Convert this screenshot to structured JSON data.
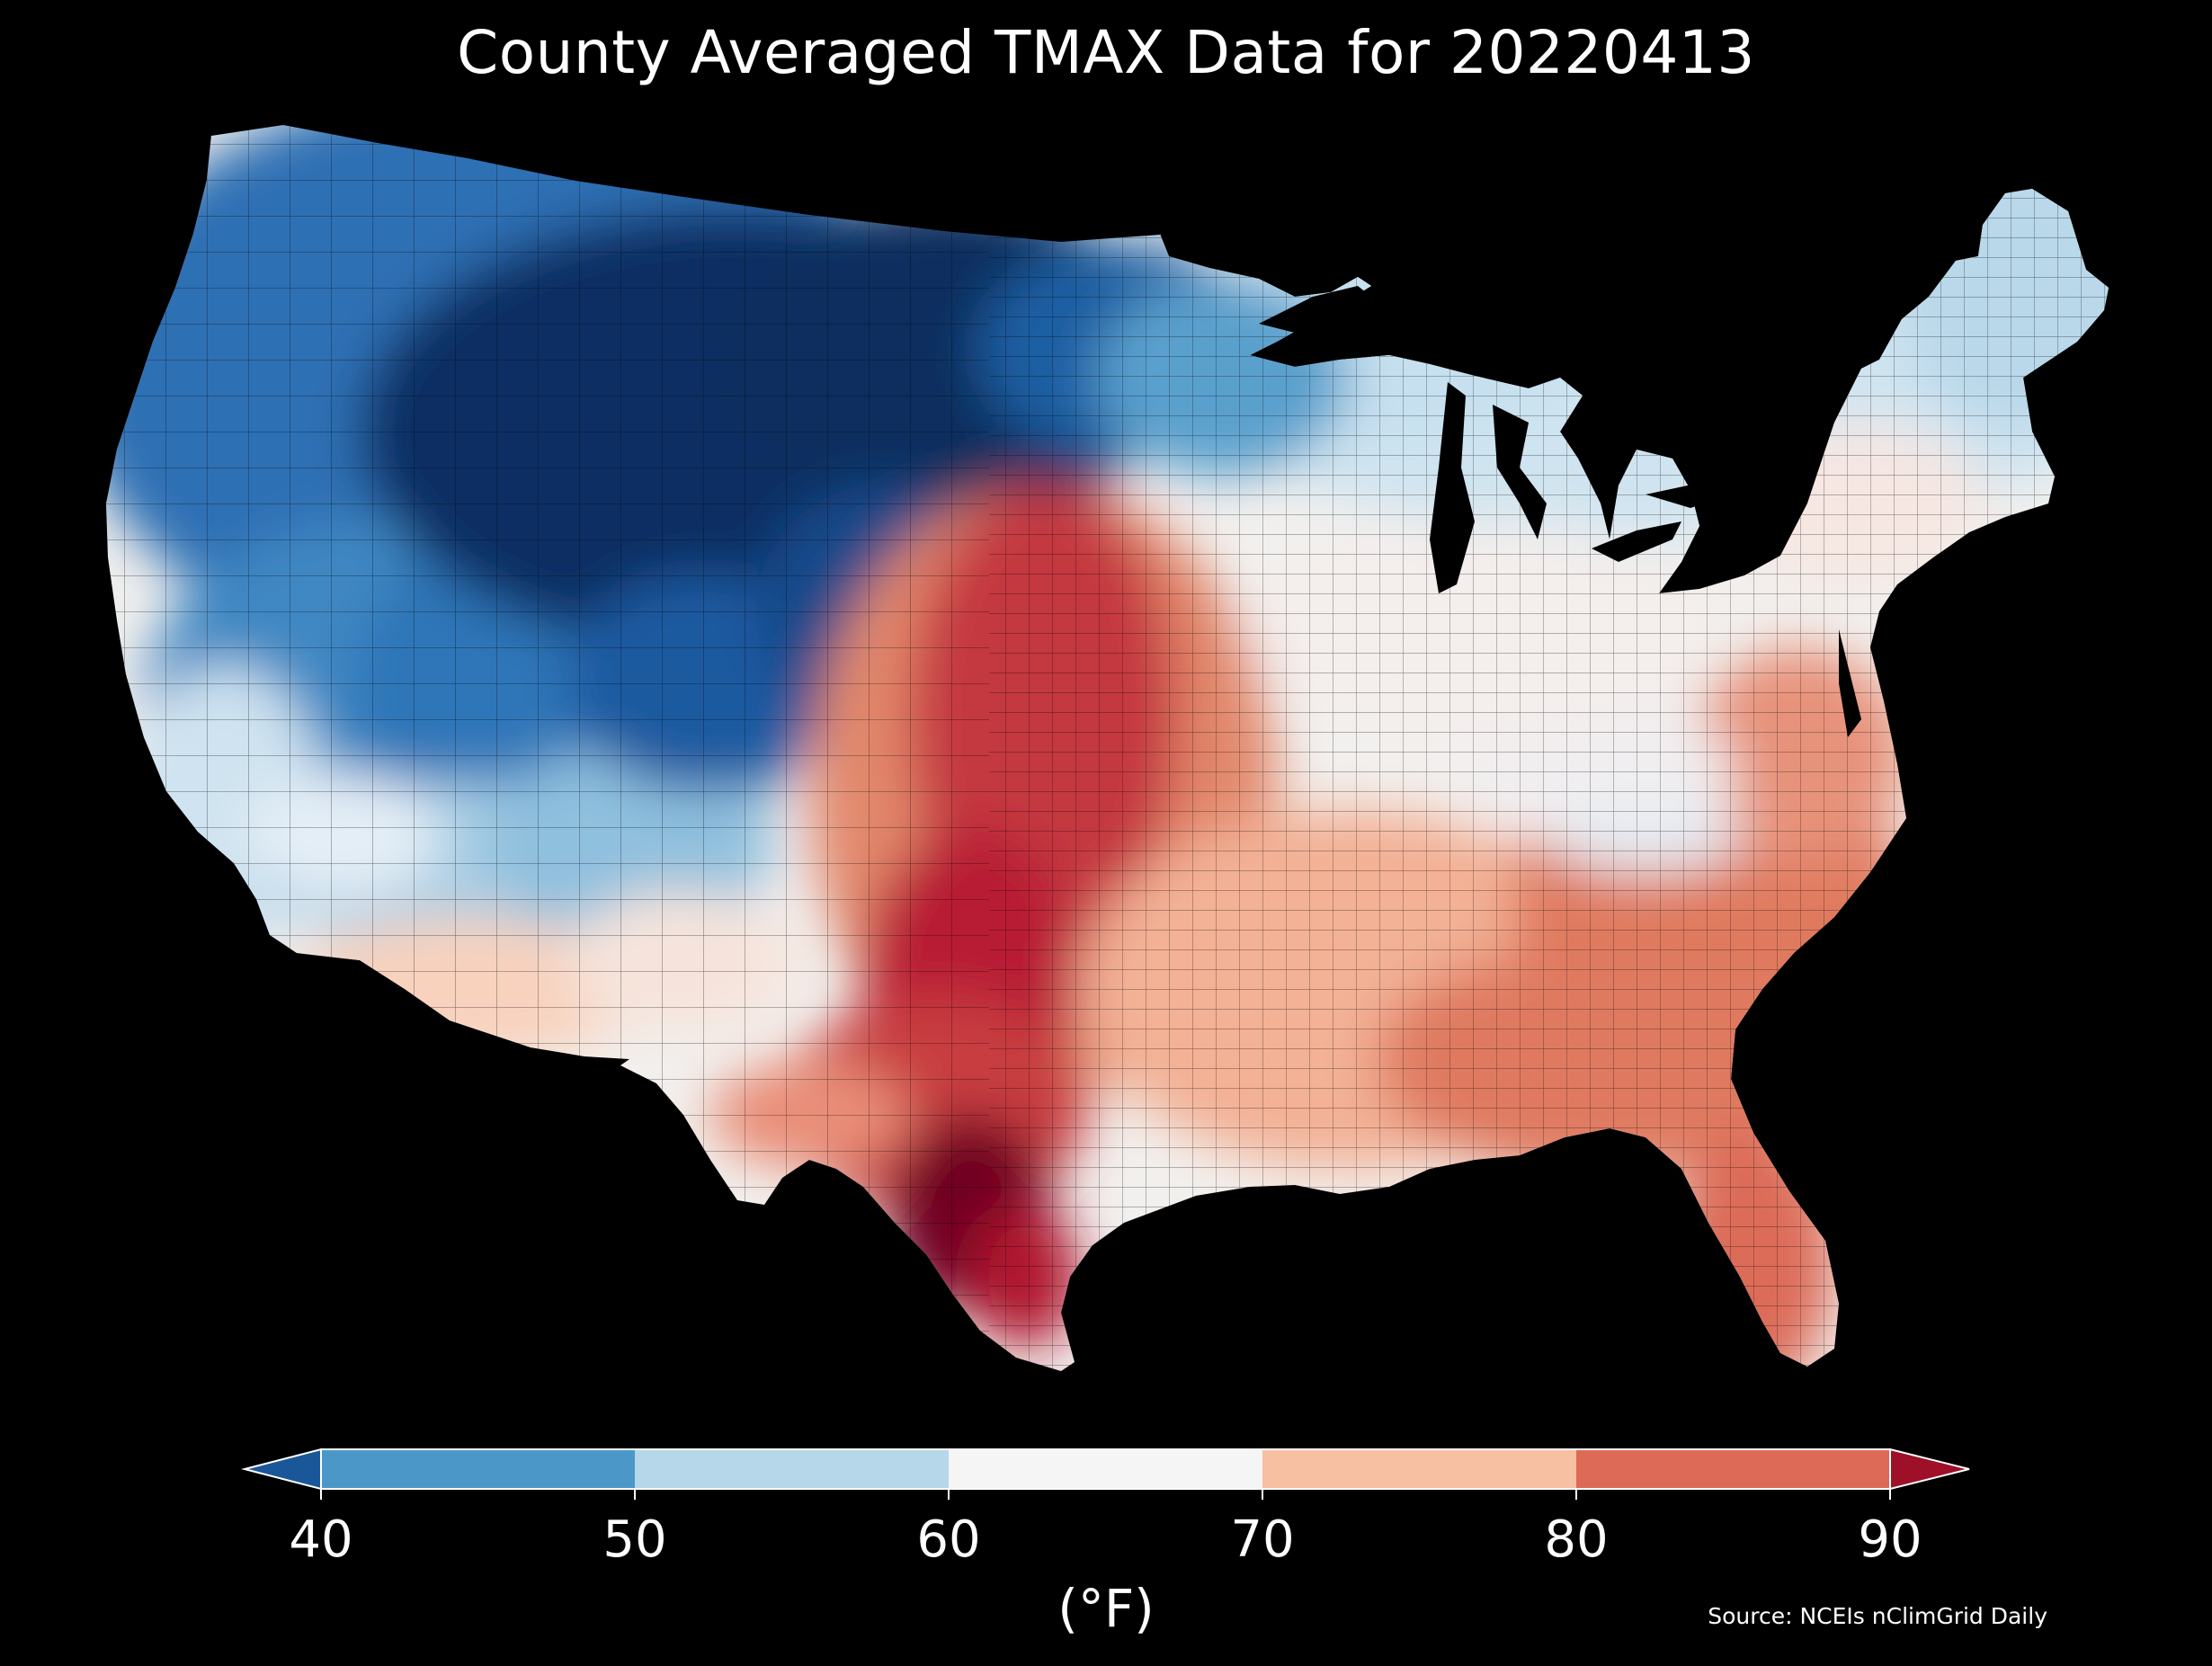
{
  "title": "County Averaged TMAX Data for 20220413",
  "colorbar": {
    "unit_label": "(°F)",
    "ticks": [
      "40",
      "50",
      "60",
      "70",
      "80",
      "90"
    ],
    "bins": [
      {
        "range": "<40",
        "color": "#1a5799"
      },
      {
        "range": "40-50",
        "color": "#4b98c8"
      },
      {
        "range": "50-60",
        "color": "#b6d7e9"
      },
      {
        "range": "60-70",
        "color": "#f5f5f5"
      },
      {
        "range": "70-80",
        "color": "#f8c0a2"
      },
      {
        "range": "80-90",
        "color": "#dc6a56"
      },
      {
        "range": ">90",
        "color": "#9d1028"
      }
    ]
  },
  "source": "Source: NCEIs nClimGrid Daily",
  "map_regions": [
    {
      "region": "Northern Plains / Montana / Dakotas",
      "tmax_band": "<40",
      "color": "#0b2f63"
    },
    {
      "region": "Pacific Northwest / Idaho / Wyoming",
      "tmax_band": "40-50",
      "color": "#2a6ab0"
    },
    {
      "region": "Colorado / Utah highlands",
      "tmax_band": "40-50",
      "color": "#3a82c0"
    },
    {
      "region": "California coast / Nevada / New England / Great Lakes",
      "tmax_band": "50-60",
      "color": "#bcd9ea"
    },
    {
      "region": "Ohio Valley / Mid-Atlantic",
      "tmax_band": "60-70",
      "color": "#f4f0ef"
    },
    {
      "region": "Southeast / Arizona / Gulf Coast",
      "tmax_band": "70-80",
      "color": "#f2a887"
    },
    {
      "region": "Carolinas / Georgia / Florida",
      "tmax_band": "80-90",
      "color": "#de7258"
    },
    {
      "region": "Southern Plains / Oklahoma / Kansas",
      "tmax_band": "80-90",
      "color": "#c23a3f"
    },
    {
      "region": "South Texas",
      "tmax_band": ">90",
      "color": "#6f0022"
    }
  ]
}
